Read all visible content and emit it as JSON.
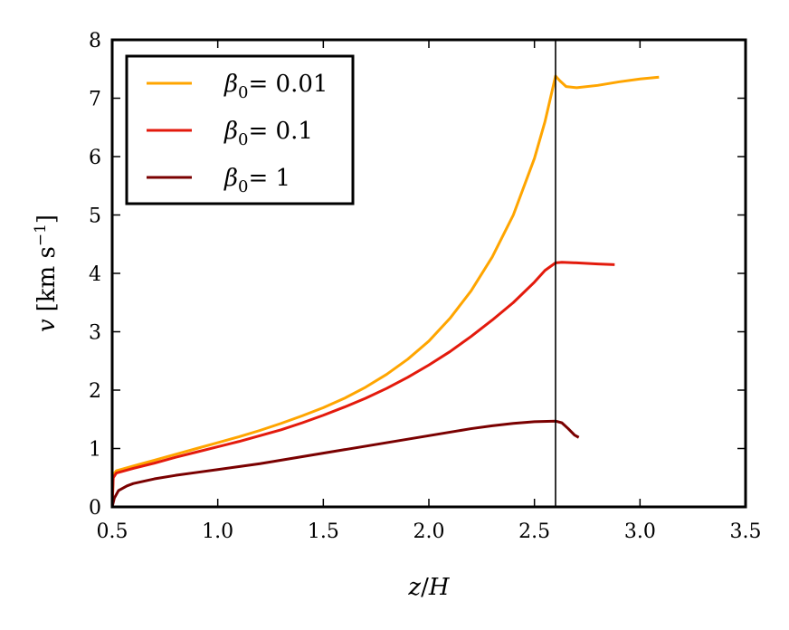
{
  "chart_data": {
    "type": "line",
    "xlabel_var": "z",
    "xlabel_sep": "/",
    "xlabel_den": "H",
    "ylabel_var": "v",
    "ylabel_unit_open": "[km s",
    "ylabel_unit_exp": "−1",
    "ylabel_unit_close": "]",
    "xlim": [
      0.5,
      3.5
    ],
    "ylim": [
      0,
      8
    ],
    "xticks": [
      0.5,
      1.0,
      1.5,
      2.0,
      2.5,
      3.0,
      3.5
    ],
    "xtick_labels": [
      "0.5",
      "1.0",
      "1.5",
      "2.0",
      "2.5",
      "3.0",
      "3.5"
    ],
    "yticks": [
      0,
      1,
      2,
      3,
      4,
      5,
      6,
      7,
      8
    ],
    "ytick_labels": [
      "0",
      "1",
      "2",
      "3",
      "4",
      "5",
      "6",
      "7",
      "8"
    ],
    "vertical_line_x": 2.6,
    "legend_position": "upper-left",
    "series": [
      {
        "name_sym": "β",
        "name_sub": "0",
        "name_val": "= 0.01",
        "color": "#ffa500",
        "points": [
          [
            0.5,
            0.0
          ],
          [
            0.505,
            0.55
          ],
          [
            0.52,
            0.62
          ],
          [
            0.6,
            0.7
          ],
          [
            0.7,
            0.8
          ],
          [
            0.8,
            0.9
          ],
          [
            0.9,
            1.0
          ],
          [
            1.0,
            1.1
          ],
          [
            1.1,
            1.2
          ],
          [
            1.2,
            1.31
          ],
          [
            1.3,
            1.43
          ],
          [
            1.4,
            1.56
          ],
          [
            1.5,
            1.7
          ],
          [
            1.6,
            1.86
          ],
          [
            1.7,
            2.05
          ],
          [
            1.8,
            2.27
          ],
          [
            1.9,
            2.53
          ],
          [
            2.0,
            2.84
          ],
          [
            2.1,
            3.23
          ],
          [
            2.2,
            3.7
          ],
          [
            2.3,
            4.28
          ],
          [
            2.4,
            5.0
          ],
          [
            2.5,
            5.97
          ],
          [
            2.55,
            6.6
          ],
          [
            2.6,
            7.38
          ],
          [
            2.62,
            7.3
          ],
          [
            2.65,
            7.2
          ],
          [
            2.7,
            7.18
          ],
          [
            2.8,
            7.22
          ],
          [
            2.9,
            7.28
          ],
          [
            3.0,
            7.33
          ],
          [
            3.09,
            7.36
          ]
        ]
      },
      {
        "name_sym": "β",
        "name_sub": "0",
        "name_val": "= 0.1",
        "color": "#e31a0c",
        "points": [
          [
            0.5,
            0.0
          ],
          [
            0.505,
            0.5
          ],
          [
            0.52,
            0.58
          ],
          [
            0.6,
            0.66
          ],
          [
            0.7,
            0.75
          ],
          [
            0.8,
            0.85
          ],
          [
            0.9,
            0.94
          ],
          [
            1.0,
            1.03
          ],
          [
            1.1,
            1.12
          ],
          [
            1.2,
            1.22
          ],
          [
            1.3,
            1.32
          ],
          [
            1.4,
            1.44
          ],
          [
            1.5,
            1.57
          ],
          [
            1.6,
            1.71
          ],
          [
            1.7,
            1.86
          ],
          [
            1.8,
            2.03
          ],
          [
            1.9,
            2.22
          ],
          [
            2.0,
            2.43
          ],
          [
            2.1,
            2.66
          ],
          [
            2.2,
            2.92
          ],
          [
            2.3,
            3.2
          ],
          [
            2.4,
            3.5
          ],
          [
            2.5,
            3.85
          ],
          [
            2.55,
            4.05
          ],
          [
            2.6,
            4.18
          ],
          [
            2.63,
            4.19
          ],
          [
            2.7,
            4.18
          ],
          [
            2.8,
            4.16
          ],
          [
            2.88,
            4.15
          ]
        ]
      },
      {
        "name_sym": "β",
        "name_sub": "0",
        "name_val": "= 1",
        "color": "#7a0000",
        "points": [
          [
            0.5,
            0.0
          ],
          [
            0.51,
            0.15
          ],
          [
            0.53,
            0.28
          ],
          [
            0.57,
            0.36
          ],
          [
            0.6,
            0.4
          ],
          [
            0.7,
            0.48
          ],
          [
            0.8,
            0.54
          ],
          [
            0.9,
            0.59
          ],
          [
            1.0,
            0.64
          ],
          [
            1.1,
            0.69
          ],
          [
            1.2,
            0.74
          ],
          [
            1.3,
            0.8
          ],
          [
            1.4,
            0.86
          ],
          [
            1.5,
            0.92
          ],
          [
            1.6,
            0.98
          ],
          [
            1.7,
            1.04
          ],
          [
            1.8,
            1.1
          ],
          [
            1.9,
            1.16
          ],
          [
            2.0,
            1.22
          ],
          [
            2.1,
            1.28
          ],
          [
            2.2,
            1.34
          ],
          [
            2.3,
            1.39
          ],
          [
            2.4,
            1.43
          ],
          [
            2.5,
            1.46
          ],
          [
            2.6,
            1.47
          ],
          [
            2.63,
            1.44
          ],
          [
            2.66,
            1.34
          ],
          [
            2.69,
            1.23
          ],
          [
            2.71,
            1.19
          ]
        ]
      }
    ]
  }
}
